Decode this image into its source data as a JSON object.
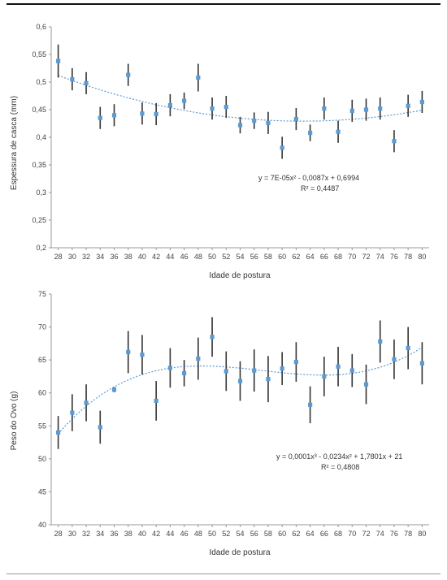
{
  "chart_data": [
    {
      "type": "scatter",
      "xlabel": "Idade de postura",
      "ylabel": "Espessura de casca (mm)",
      "ylim": [
        0.2,
        0.6
      ],
      "yticks": [
        "0,2",
        "0,25",
        "0,3",
        "0,35",
        "0,4",
        "0,45",
        "0,5",
        "0,55",
        "0,6"
      ],
      "categories": [
        "28",
        "30",
        "32",
        "34",
        "36",
        "38",
        "40",
        "42",
        "44",
        "46",
        "48",
        "50",
        "52",
        "54",
        "56",
        "58",
        "60",
        "62",
        "64",
        "66",
        "68",
        "70",
        "72",
        "74",
        "76",
        "78",
        "80"
      ],
      "values": [
        0.538,
        0.505,
        0.498,
        0.435,
        0.44,
        0.513,
        0.443,
        0.442,
        0.458,
        0.466,
        0.508,
        0.452,
        0.455,
        0.422,
        0.43,
        0.426,
        0.381,
        0.433,
        0.408,
        0.452,
        0.41,
        0.448,
        0.45,
        0.452,
        0.393,
        0.457,
        0.464
      ],
      "errors": [
        0.03,
        0.02,
        0.02,
        0.02,
        0.02,
        0.02,
        0.02,
        0.02,
        0.02,
        0.015,
        0.025,
        0.02,
        0.02,
        0.015,
        0.015,
        0.02,
        0.02,
        0.02,
        0.015,
        0.02,
        0.02,
        0.02,
        0.02,
        0.02,
        0.02,
        0.02,
        0.02
      ],
      "color": "#5b9bd5",
      "trendline": "polynomial",
      "equation": "y = 7E-05x² - 0,0087x + 0,6994",
      "r2": "R² = 0,4487",
      "grid": false
    },
    {
      "type": "scatter",
      "xlabel": "Idade de postura",
      "ylabel": "Peso do Ovo (g)",
      "ylim": [
        40,
        75
      ],
      "yticks": [
        "40",
        "45",
        "50",
        "55",
        "60",
        "65",
        "70",
        "75"
      ],
      "categories": [
        "28",
        "30",
        "32",
        "34",
        "36",
        "38",
        "40",
        "42",
        "44",
        "46",
        "48",
        "50",
        "52",
        "54",
        "56",
        "58",
        "60",
        "62",
        "64",
        "66",
        "68",
        "70",
        "72",
        "74",
        "76",
        "78",
        "80"
      ],
      "values": [
        54.0,
        57.0,
        58.5,
        54.8,
        60.5,
        66.2,
        65.8,
        58.8,
        63.8,
        63.0,
        65.2,
        68.5,
        63.3,
        61.8,
        63.4,
        62.1,
        63.7,
        64.7,
        58.2,
        62.5,
        64.0,
        63.4,
        61.3,
        67.8,
        65.1,
        66.8,
        64.5
      ],
      "errors": [
        2.5,
        2.8,
        2.8,
        2.5,
        0.4,
        3.2,
        3.0,
        3.0,
        3.0,
        2.0,
        3.2,
        3.0,
        3.0,
        3.0,
        3.2,
        3.5,
        2.5,
        3.0,
        2.8,
        3.0,
        3.0,
        2.5,
        3.0,
        3.2,
        3.0,
        3.2,
        3.2
      ],
      "color": "#5b9bd5",
      "trendline": "polynomial",
      "equation": "y = 0,0001x³ - 0,0234x² + 1,7801x + 21",
      "r2": "R² = 0,4808",
      "grid": false
    }
  ]
}
